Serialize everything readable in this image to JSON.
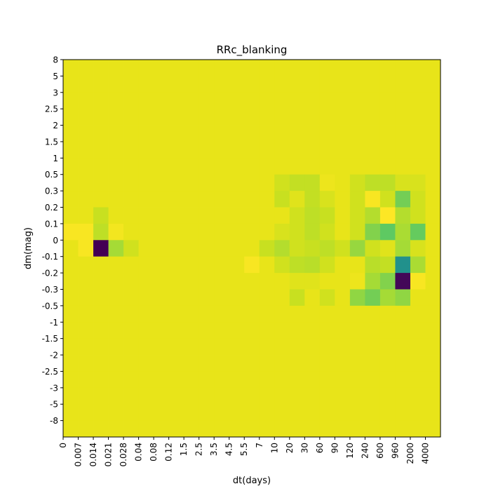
{
  "chart_data": {
    "type": "heatmap",
    "title": "RRc_blanking",
    "xlabel": "dt(days)",
    "ylabel": "dm(mag)",
    "x_ticks": [
      "0",
      "0.007",
      "0.014",
      "0.021",
      "0.028",
      "0.04",
      "0.08",
      "0.12",
      "1.5",
      "2.5",
      "3.5",
      "4.5",
      "5.5",
      "7",
      "10",
      "20",
      "30",
      "60",
      "90",
      "120",
      "240",
      "600",
      "960",
      "2000",
      "4000"
    ],
    "y_ticks": [
      "8",
      "5",
      "3",
      "2.5",
      "2",
      "1.5",
      "1",
      "0.5",
      "0.3",
      "0.2",
      "0.1",
      "0",
      "-0.1",
      "-0.2",
      "-0.3",
      "-0.5",
      "-1",
      "-1.5",
      "-2",
      "-2.5",
      "-3",
      "-5",
      "-8"
    ],
    "colormap": "viridis",
    "value_range": [
      0,
      1
    ],
    "background_value": 0.96,
    "cells": [
      {
        "x": "0.014",
        "y": "0",
        "value": 0.0
      },
      {
        "x": "0.021",
        "y": "0",
        "value": 0.85
      },
      {
        "x": "0.028",
        "y": "0",
        "value": 0.93
      },
      {
        "x": "0",
        "y": "0.1",
        "value": 0.99
      },
      {
        "x": "0.007",
        "y": "0.1",
        "value": 0.99
      },
      {
        "x": "0.014",
        "y": "0.1",
        "value": 0.9
      },
      {
        "x": "0.021",
        "y": "0.1",
        "value": 0.98
      },
      {
        "x": "0.014",
        "y": "0.2",
        "value": 0.92
      },
      {
        "x": "0.007",
        "y": "0",
        "value": 0.99
      },
      {
        "x": "7",
        "y": "0",
        "value": 0.92
      },
      {
        "x": "10",
        "y": "0",
        "value": 0.88
      },
      {
        "x": "20",
        "y": "0",
        "value": 0.93
      },
      {
        "x": "30",
        "y": "0",
        "value": 0.92
      },
      {
        "x": "60",
        "y": "0",
        "value": 0.9
      },
      {
        "x": "90",
        "y": "0",
        "value": 0.93
      },
      {
        "x": "120",
        "y": "0",
        "value": 0.83
      },
      {
        "x": "240",
        "y": "0",
        "value": 0.93
      },
      {
        "x": "600",
        "y": "0",
        "value": 0.95
      },
      {
        "x": "960",
        "y": "0",
        "value": 0.85
      },
      {
        "x": "2000",
        "y": "0",
        "value": 0.94
      },
      {
        "x": "5.5",
        "y": "-0.1",
        "value": 0.99
      },
      {
        "x": "10",
        "y": "-0.1",
        "value": 0.93
      },
      {
        "x": "20",
        "y": "-0.1",
        "value": 0.9
      },
      {
        "x": "30",
        "y": "-0.1",
        "value": 0.89
      },
      {
        "x": "60",
        "y": "-0.1",
        "value": 0.93
      },
      {
        "x": "240",
        "y": "-0.1",
        "value": 0.89
      },
      {
        "x": "600",
        "y": "-0.1",
        "value": 0.91
      },
      {
        "x": "960",
        "y": "-0.1",
        "value": 0.5
      },
      {
        "x": "2000",
        "y": "-0.1",
        "value": 0.86
      },
      {
        "x": "20",
        "y": "-0.2",
        "value": 0.95
      },
      {
        "x": "30",
        "y": "-0.2",
        "value": 0.95
      },
      {
        "x": "120",
        "y": "-0.2",
        "value": 0.97
      },
      {
        "x": "240",
        "y": "-0.2",
        "value": 0.85
      },
      {
        "x": "600",
        "y": "-0.2",
        "value": 0.8
      },
      {
        "x": "960",
        "y": "-0.2",
        "value": 0.02
      },
      {
        "x": "2000",
        "y": "-0.2",
        "value": 0.99
      },
      {
        "x": "20",
        "y": "-0.3",
        "value": 0.92
      },
      {
        "x": "60",
        "y": "-0.3",
        "value": 0.93
      },
      {
        "x": "120",
        "y": "-0.3",
        "value": 0.82
      },
      {
        "x": "240",
        "y": "-0.3",
        "value": 0.78
      },
      {
        "x": "600",
        "y": "-0.3",
        "value": 0.85
      },
      {
        "x": "960",
        "y": "-0.3",
        "value": 0.82
      },
      {
        "x": "10",
        "y": "0.1",
        "value": 0.94
      },
      {
        "x": "20",
        "y": "0.1",
        "value": 0.93
      },
      {
        "x": "30",
        "y": "0.1",
        "value": 0.9
      },
      {
        "x": "60",
        "y": "0.1",
        "value": 0.93
      },
      {
        "x": "120",
        "y": "0.1",
        "value": 0.93
      },
      {
        "x": "240",
        "y": "0.1",
        "value": 0.8
      },
      {
        "x": "600",
        "y": "0.1",
        "value": 0.75
      },
      {
        "x": "960",
        "y": "0.1",
        "value": 0.86
      },
      {
        "x": "2000",
        "y": "0.1",
        "value": 0.76
      },
      {
        "x": "10",
        "y": "0.2",
        "value": 0.96
      },
      {
        "x": "20",
        "y": "0.2",
        "value": 0.93
      },
      {
        "x": "30",
        "y": "0.2",
        "value": 0.9
      },
      {
        "x": "60",
        "y": "0.2",
        "value": 0.92
      },
      {
        "x": "120",
        "y": "0.2",
        "value": 0.93
      },
      {
        "x": "240",
        "y": "0.2",
        "value": 0.88
      },
      {
        "x": "600",
        "y": "0.2",
        "value": 1.0
      },
      {
        "x": "960",
        "y": "0.2",
        "value": 0.88
      },
      {
        "x": "2000",
        "y": "0.2",
        "value": 0.93
      },
      {
        "x": "10",
        "y": "0.3",
        "value": 0.92
      },
      {
        "x": "20",
        "y": "0.3",
        "value": 0.95
      },
      {
        "x": "30",
        "y": "0.3",
        "value": 0.91
      },
      {
        "x": "60",
        "y": "0.3",
        "value": 0.94
      },
      {
        "x": "120",
        "y": "0.3",
        "value": 0.93
      },
      {
        "x": "240",
        "y": "0.3",
        "value": 0.99
      },
      {
        "x": "600",
        "y": "0.3",
        "value": 0.93
      },
      {
        "x": "960",
        "y": "0.3",
        "value": 0.78
      },
      {
        "x": "2000",
        "y": "0.3",
        "value": 0.93
      },
      {
        "x": "10",
        "y": "0.5",
        "value": 0.93
      },
      {
        "x": "20",
        "y": "0.5",
        "value": 0.91
      },
      {
        "x": "30",
        "y": "0.5",
        "value": 0.91
      },
      {
        "x": "60",
        "y": "0.5",
        "value": 0.97
      },
      {
        "x": "120",
        "y": "0.5",
        "value": 0.93
      },
      {
        "x": "240",
        "y": "0.5",
        "value": 0.9
      },
      {
        "x": "600",
        "y": "0.5",
        "value": 0.9
      },
      {
        "x": "960",
        "y": "0.5",
        "value": 0.94
      },
      {
        "x": "2000",
        "y": "0.5",
        "value": 0.94
      }
    ]
  }
}
